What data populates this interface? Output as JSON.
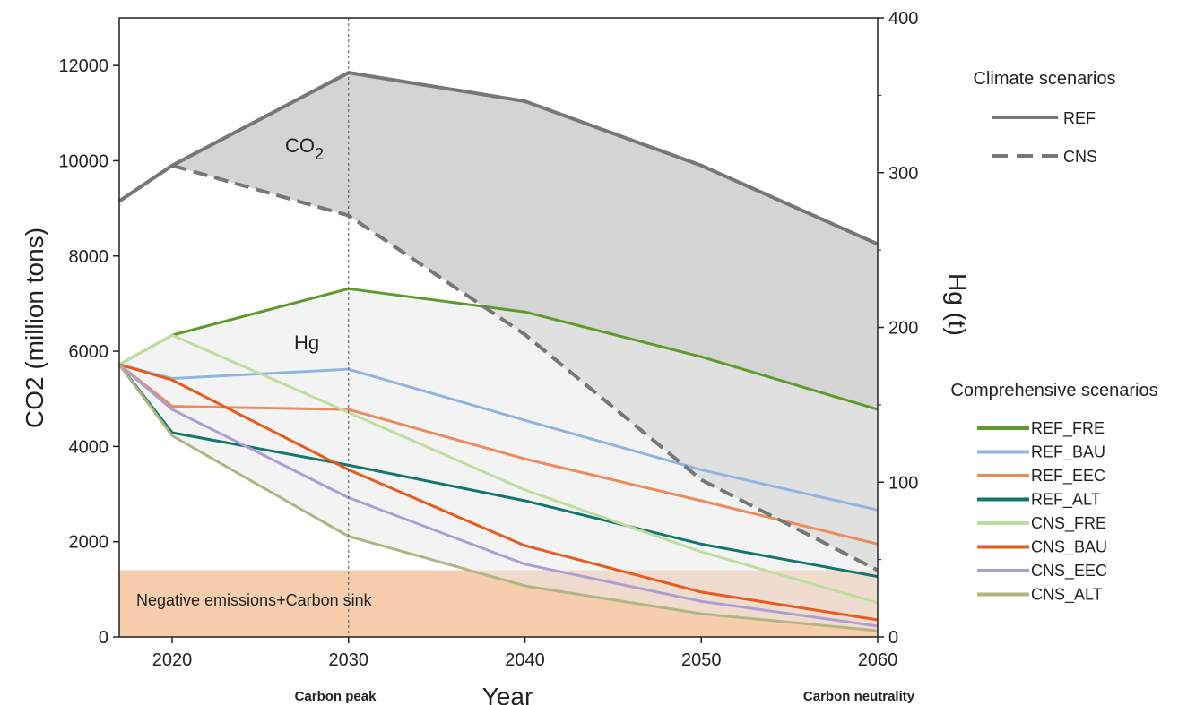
{
  "chart_data": {
    "type": "line",
    "xlabel": "Year",
    "ylabel_left": "CO2 (million tons)",
    "ylabel_right": "Hg (t)",
    "xlim": [
      2017,
      2060
    ],
    "ylim_left": [
      0,
      13000
    ],
    "ylim_right": [
      0,
      400
    ],
    "x_ticks": [
      2020,
      2030,
      2040,
      2050,
      2060
    ],
    "y_left_ticks": [
      0,
      2000,
      4000,
      6000,
      8000,
      10000,
      12000
    ],
    "y_right_ticks": [
      0,
      100,
      200,
      300,
      400
    ],
    "annotations": {
      "co2_label": "CO",
      "co2_sub": "2",
      "hg_label": "Hg",
      "carbon_peak": "Carbon peak",
      "carbon_neutrality": "Carbon neutrality",
      "band_label": "Negative emissions+Carbon sink",
      "band_top": 1400,
      "peak_year": 2030
    },
    "co2_series": [
      {
        "name": "REF",
        "style": "solid",
        "color": "#7f7f7f",
        "x": [
          2017,
          2020,
          2030,
          2040,
          2050,
          2060
        ],
        "y": [
          9150,
          9900,
          11850,
          11250,
          9900,
          8250
        ]
      },
      {
        "name": "CNS",
        "style": "dashed",
        "color": "#7f7f7f",
        "x": [
          2017,
          2020,
          2030,
          2040,
          2050,
          2060
        ],
        "y": [
          9150,
          9900,
          8850,
          6350,
          3300,
          1400
        ]
      }
    ],
    "hg_series": [
      {
        "name": "REF_FRE",
        "color": "#5e9a2c",
        "x": [
          2017,
          2020,
          2030,
          2040,
          2050,
          2060
        ],
        "y": [
          176,
          195,
          225,
          210,
          181,
          147
        ]
      },
      {
        "name": "REF_BAU",
        "color": "#91b5df",
        "x": [
          2017,
          2020,
          2030,
          2040,
          2050,
          2060
        ],
        "y": [
          176,
          167,
          173,
          140,
          108,
          82
        ]
      },
      {
        "name": "REF_EEC",
        "color": "#ec8c5c",
        "x": [
          2017,
          2020,
          2030,
          2040,
          2050,
          2060
        ],
        "y": [
          176,
          149,
          147,
          115,
          88,
          60
        ]
      },
      {
        "name": "REF_ALT",
        "color": "#13766f",
        "x": [
          2017,
          2020,
          2030,
          2040,
          2050,
          2060
        ],
        "y": [
          176,
          132,
          111,
          88,
          60,
          39
        ]
      },
      {
        "name": "CNS_FRE",
        "color": "#bedd9e",
        "x": [
          2017,
          2020,
          2030,
          2040,
          2050,
          2060
        ],
        "y": [
          176,
          195,
          145,
          95,
          55,
          22
        ]
      },
      {
        "name": "CNS_BAU",
        "color": "#e85b1e",
        "x": [
          2017,
          2020,
          2030,
          2040,
          2050,
          2060
        ],
        "y": [
          176,
          166,
          108,
          59,
          29,
          11
        ]
      },
      {
        "name": "CNS_EEC",
        "color": "#ad9ed3",
        "x": [
          2017,
          2020,
          2030,
          2040,
          2050,
          2060
        ],
        "y": [
          176,
          147,
          90,
          47,
          23,
          7
        ]
      },
      {
        "name": "CNS_ALT",
        "color": "#b3b483",
        "x": [
          2017,
          2020,
          2030,
          2040,
          2050,
          2060
        ],
        "y": [
          176,
          130,
          65,
          33,
          15,
          4
        ]
      }
    ],
    "legend_climate_title": "Climate scenarios",
    "legend_comp_title": "Comprehensive scenarios"
  }
}
